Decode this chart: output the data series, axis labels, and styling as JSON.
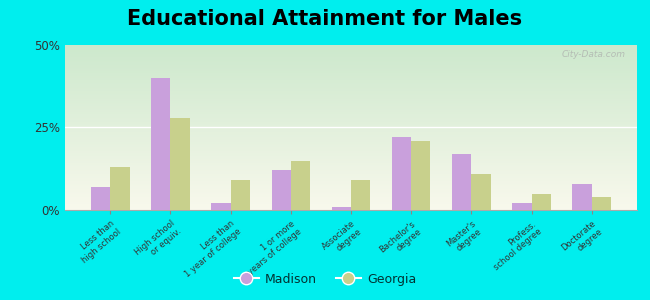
{
  "title": "Educational Attainment for Males",
  "categories": [
    "Less than\nhigh school",
    "High school\nor equiv.",
    "Less than\n1 year of college",
    "1 or more\nyears of college",
    "Associate\ndegree",
    "Bachelor's\ndegree",
    "Master's\ndegree",
    "Profess.\nschool degree",
    "Doctorate\ndegree"
  ],
  "madison_values": [
    7,
    40,
    2,
    12,
    1,
    22,
    17,
    2,
    8
  ],
  "georgia_values": [
    13,
    28,
    9,
    15,
    9,
    21,
    11,
    5,
    4
  ],
  "madison_color": "#c9a0dc",
  "georgia_color": "#c8d08c",
  "background_outer": "#00eeee",
  "background_inner_top": "#f0f4e0",
  "background_inner_bottom": "#d4ead4",
  "ylim": [
    0,
    50
  ],
  "yticks": [
    0,
    25,
    50
  ],
  "ytick_labels": [
    "0%",
    "25%",
    "50%"
  ],
  "legend_madison": "Madison",
  "legend_georgia": "Georgia",
  "title_fontsize": 15,
  "watermark": "City-Data.com",
  "bar_width": 0.32
}
